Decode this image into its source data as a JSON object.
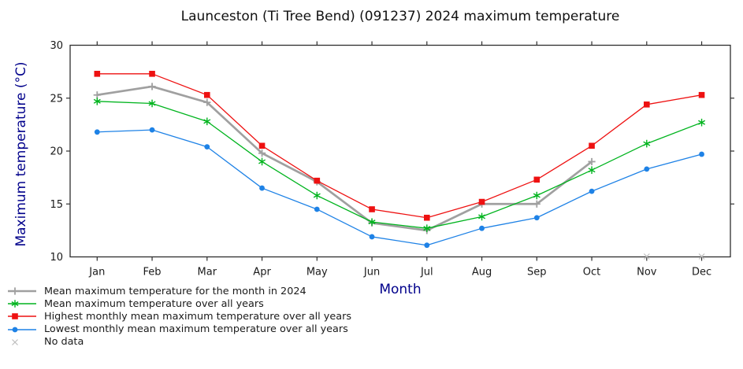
{
  "chart_data": {
    "type": "line",
    "title": "Launceston (Ti Tree Bend) (091237) 2024 maximum temperature",
    "xlabel": "Month",
    "ylabel": "Maximum temperature (°C)",
    "ylim": [
      10,
      30
    ],
    "yticks": [
      30,
      25,
      20,
      15,
      10
    ],
    "categories": [
      "Jan",
      "Feb",
      "Mar",
      "Apr",
      "May",
      "Jun",
      "Jul",
      "Aug",
      "Sep",
      "Oct",
      "Nov",
      "Dec"
    ],
    "grid": false,
    "legend_position": "bottom-left",
    "series": [
      {
        "name": "Mean maximum temperature for the month in 2024",
        "color": "#a0a0a0",
        "marker": "plus",
        "line_width": 2.7,
        "values": [
          25.3,
          26.1,
          24.6,
          19.8,
          17.1,
          13.2,
          12.5,
          15.0,
          15.0,
          19.0,
          null,
          null
        ]
      },
      {
        "name": "Mean maximum temperature over all years",
        "color": "#00b41e",
        "marker": "asterisk",
        "line_width": 1.3,
        "values": [
          24.7,
          24.5,
          22.8,
          19.0,
          15.8,
          13.3,
          12.7,
          13.8,
          15.8,
          18.2,
          20.7,
          22.7
        ]
      },
      {
        "name": "Highest monthly mean maximum temperature over all years",
        "color": "#ee1111",
        "marker": "square",
        "line_width": 1.3,
        "values": [
          27.3,
          27.3,
          25.3,
          20.5,
          17.2,
          14.5,
          13.7,
          15.2,
          17.3,
          20.5,
          24.4,
          25.3
        ]
      },
      {
        "name": "Lowest monthly mean maximum temperature over all years",
        "color": "#1e82e6",
        "marker": "circle",
        "line_width": 1.3,
        "values": [
          21.8,
          22.0,
          20.4,
          16.5,
          14.5,
          11.9,
          11.1,
          12.7,
          13.7,
          16.2,
          18.3,
          19.7
        ]
      }
    ],
    "no_data": {
      "label": "No data",
      "marker": "x",
      "color": "#bdbdbd",
      "months": [
        "Nov",
        "Dec"
      ]
    },
    "colors": {
      "axis_label": "#00008b",
      "frame": "#2e2e2e",
      "text": "#1a1a1a"
    }
  }
}
